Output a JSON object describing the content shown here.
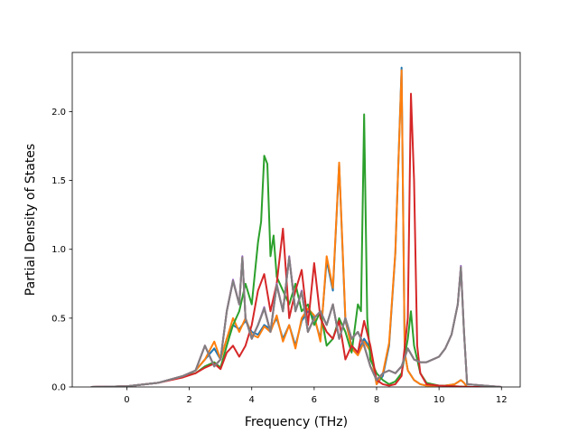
{
  "chart_data": {
    "type": "line",
    "title": "",
    "xlabel": "Frequency (THz)",
    "ylabel": "Partial Density of States",
    "xlim": [
      -1.75,
      12.6
    ],
    "ylim": [
      0,
      2.43
    ],
    "xticks": [
      0,
      2,
      4,
      6,
      8,
      10,
      12
    ],
    "yticks": [
      0.0,
      0.5,
      1.0,
      1.5,
      2.0
    ],
    "xtick_labels": [
      "0",
      "2",
      "4",
      "6",
      "8",
      "10",
      "12"
    ],
    "ytick_labels": [
      "0.0",
      "0.5",
      "1.0",
      "1.5",
      "2.0"
    ],
    "grid": false,
    "legend": "none",
    "series": [
      {
        "color": "#1f77b4",
        "x": [
          -1.15,
          0,
          1.0,
          1.8,
          2.2,
          2.5,
          2.8,
          3.0,
          3.2,
          3.4,
          3.6,
          3.8,
          4.0,
          4.2,
          4.4,
          4.6,
          4.8,
          5.0,
          5.2,
          5.4,
          5.6,
          5.8,
          6.0,
          6.2,
          6.4,
          6.6,
          6.8,
          7.0,
          7.2,
          7.4,
          7.6,
          7.8,
          8.0,
          8.2,
          8.4,
          8.6,
          8.8,
          8.9,
          9.0,
          9.2,
          9.4,
          9.6,
          9.8,
          10.0,
          10.2,
          10.5,
          10.7,
          10.8,
          10.9,
          12.0
        ],
        "y": [
          0,
          0.005,
          0.03,
          0.08,
          0.12,
          0.2,
          0.28,
          0.2,
          0.35,
          0.45,
          0.42,
          0.48,
          0.4,
          0.38,
          0.45,
          0.42,
          0.5,
          0.35,
          0.45,
          0.3,
          0.48,
          0.55,
          0.5,
          0.35,
          0.92,
          0.7,
          1.62,
          0.48,
          0.3,
          0.25,
          0.35,
          0.28,
          0.02,
          0.08,
          0.3,
          0.97,
          2.32,
          0.25,
          0.12,
          0.05,
          0.02,
          0.01,
          0.01,
          0.01,
          0.01,
          0.02,
          0.05,
          0.03,
          0.0,
          0.0
        ]
      },
      {
        "color": "#ff7f0e",
        "x": [
          -1.15,
          0,
          1.0,
          1.8,
          2.2,
          2.5,
          2.8,
          3.0,
          3.2,
          3.4,
          3.6,
          3.8,
          4.0,
          4.2,
          4.4,
          4.6,
          4.8,
          5.0,
          5.2,
          5.4,
          5.6,
          5.8,
          6.0,
          6.2,
          6.4,
          6.6,
          6.8,
          7.0,
          7.2,
          7.4,
          7.6,
          7.8,
          8.0,
          8.2,
          8.4,
          8.6,
          8.8,
          8.9,
          9.0,
          9.2,
          9.4,
          9.6,
          9.8,
          10.0,
          10.2,
          10.5,
          10.7,
          10.8,
          10.9,
          12.0
        ],
        "y": [
          0,
          0.005,
          0.03,
          0.08,
          0.12,
          0.2,
          0.33,
          0.2,
          0.35,
          0.5,
          0.4,
          0.5,
          0.38,
          0.36,
          0.44,
          0.4,
          0.52,
          0.33,
          0.45,
          0.28,
          0.5,
          0.57,
          0.52,
          0.33,
          0.95,
          0.72,
          1.63,
          0.5,
          0.28,
          0.23,
          0.33,
          0.26,
          0.02,
          0.1,
          0.32,
          0.98,
          2.3,
          0.25,
          0.12,
          0.05,
          0.02,
          0.01,
          0.01,
          0.01,
          0.01,
          0.02,
          0.05,
          0.03,
          0.0,
          0.0
        ]
      },
      {
        "color": "#2ca02c",
        "x": [
          -1.15,
          0,
          1.0,
          1.8,
          2.2,
          2.5,
          2.8,
          3.0,
          3.2,
          3.4,
          3.6,
          3.8,
          4.0,
          4.2,
          4.3,
          4.4,
          4.5,
          4.6,
          4.7,
          4.8,
          5.0,
          5.2,
          5.4,
          5.6,
          5.8,
          6.0,
          6.2,
          6.4,
          6.6,
          6.8,
          7.0,
          7.2,
          7.4,
          7.5,
          7.6,
          7.7,
          7.8,
          8.0,
          8.2,
          8.4,
          8.6,
          8.8,
          9.0,
          9.1,
          9.2,
          9.4,
          9.6,
          10.0,
          11.0,
          12.0
        ],
        "y": [
          0,
          0.005,
          0.03,
          0.08,
          0.1,
          0.15,
          0.18,
          0.14,
          0.3,
          0.45,
          0.55,
          0.75,
          0.6,
          1.05,
          1.2,
          1.68,
          1.62,
          0.95,
          1.1,
          0.8,
          0.7,
          0.6,
          0.75,
          0.55,
          0.6,
          0.45,
          0.55,
          0.3,
          0.35,
          0.5,
          0.4,
          0.25,
          0.6,
          0.55,
          1.98,
          0.5,
          0.2,
          0.1,
          0.05,
          0.02,
          0.04,
          0.1,
          0.35,
          0.55,
          0.3,
          0.1,
          0.03,
          0.01,
          0.0,
          0.0
        ]
      },
      {
        "color": "#d62728",
        "x": [
          -1.15,
          0,
          1.0,
          1.8,
          2.2,
          2.5,
          2.8,
          3.0,
          3.2,
          3.4,
          3.6,
          3.8,
          4.0,
          4.2,
          4.4,
          4.6,
          4.8,
          5.0,
          5.2,
          5.4,
          5.6,
          5.8,
          6.0,
          6.2,
          6.4,
          6.6,
          6.8,
          7.0,
          7.2,
          7.4,
          7.6,
          7.8,
          8.0,
          8.2,
          8.4,
          8.6,
          8.8,
          9.0,
          9.1,
          9.2,
          9.3,
          9.4,
          9.6,
          10.0,
          11.0,
          12.0
        ],
        "y": [
          0,
          0.005,
          0.03,
          0.07,
          0.1,
          0.14,
          0.17,
          0.13,
          0.25,
          0.3,
          0.22,
          0.3,
          0.45,
          0.7,
          0.82,
          0.55,
          0.75,
          1.15,
          0.5,
          0.7,
          0.85,
          0.45,
          0.9,
          0.5,
          0.4,
          0.35,
          0.48,
          0.2,
          0.3,
          0.25,
          0.48,
          0.3,
          0.05,
          0.02,
          0.01,
          0.02,
          0.08,
          0.5,
          2.13,
          1.5,
          0.3,
          0.1,
          0.02,
          0.01,
          0.0,
          0.0
        ]
      },
      {
        "color": "#9467bd",
        "x": [
          -1.15,
          0,
          1.0,
          1.8,
          2.2,
          2.5,
          2.8,
          3.0,
          3.2,
          3.4,
          3.6,
          3.7,
          3.8,
          4.0,
          4.2,
          4.4,
          4.6,
          4.8,
          5.0,
          5.2,
          5.4,
          5.6,
          5.8,
          6.0,
          6.2,
          6.4,
          6.6,
          6.8,
          7.0,
          7.2,
          7.4,
          7.6,
          7.8,
          8.0,
          8.2,
          8.4,
          8.6,
          8.8,
          9.0,
          9.2,
          9.4,
          9.6,
          9.8,
          10.0,
          10.2,
          10.4,
          10.6,
          10.7,
          10.8,
          10.9,
          12.0
        ],
        "y": [
          0,
          0.005,
          0.03,
          0.08,
          0.12,
          0.3,
          0.15,
          0.2,
          0.55,
          0.78,
          0.6,
          0.95,
          0.5,
          0.35,
          0.45,
          0.58,
          0.4,
          0.75,
          0.55,
          0.95,
          0.55,
          0.7,
          0.4,
          0.5,
          0.55,
          0.45,
          0.6,
          0.35,
          0.5,
          0.35,
          0.4,
          0.3,
          0.15,
          0.05,
          0.1,
          0.12,
          0.1,
          0.15,
          0.28,
          0.2,
          0.18,
          0.18,
          0.2,
          0.22,
          0.28,
          0.38,
          0.6,
          0.88,
          0.4,
          0.02,
          0.0
        ]
      },
      {
        "color": "#8c564b",
        "x": [
          -1.15,
          0,
          1.0,
          1.8,
          2.2,
          2.5,
          2.8,
          3.0,
          3.2,
          3.4,
          3.6,
          3.7,
          3.8,
          4.0,
          4.2,
          4.4,
          4.6,
          4.8,
          5.0,
          5.2,
          5.4,
          5.6,
          5.8,
          6.0,
          6.2,
          6.4,
          6.6,
          6.8,
          7.0,
          7.2,
          7.4,
          7.6,
          7.8,
          8.0,
          8.2,
          8.4,
          8.6,
          8.8,
          9.0,
          9.2,
          9.4,
          9.6,
          9.8,
          10.0,
          10.2,
          10.4,
          10.6,
          10.7,
          10.8,
          10.9,
          12.0
        ],
        "y": [
          0,
          0.005,
          0.03,
          0.08,
          0.12,
          0.3,
          0.15,
          0.2,
          0.55,
          0.77,
          0.6,
          0.94,
          0.5,
          0.35,
          0.45,
          0.57,
          0.4,
          0.74,
          0.55,
          0.94,
          0.55,
          0.69,
          0.4,
          0.5,
          0.55,
          0.45,
          0.6,
          0.35,
          0.5,
          0.35,
          0.4,
          0.3,
          0.15,
          0.05,
          0.1,
          0.12,
          0.1,
          0.15,
          0.28,
          0.2,
          0.18,
          0.18,
          0.2,
          0.22,
          0.28,
          0.38,
          0.6,
          0.87,
          0.4,
          0.02,
          0.0
        ]
      },
      {
        "color": "#e377c2",
        "x": [
          -1.15,
          0,
          1.0,
          1.8,
          2.2,
          2.5,
          2.8,
          3.0,
          3.2,
          3.4,
          3.6,
          3.7,
          3.8,
          4.0,
          4.2,
          4.4,
          4.6,
          4.8,
          5.0,
          5.2,
          5.4,
          5.6,
          5.8,
          6.0,
          6.2,
          6.4,
          6.6,
          6.8,
          7.0,
          7.2,
          7.4,
          7.6,
          7.8,
          8.0,
          8.2,
          8.4,
          8.6,
          8.8,
          9.0,
          9.2,
          9.4,
          9.6,
          9.8,
          10.0,
          10.2,
          10.4,
          10.6,
          10.7,
          10.8,
          10.9,
          12.0
        ],
        "y": [
          0,
          0.005,
          0.03,
          0.08,
          0.12,
          0.3,
          0.15,
          0.2,
          0.55,
          0.77,
          0.6,
          0.94,
          0.5,
          0.35,
          0.45,
          0.57,
          0.4,
          0.74,
          0.55,
          0.94,
          0.55,
          0.69,
          0.4,
          0.5,
          0.55,
          0.45,
          0.6,
          0.35,
          0.5,
          0.35,
          0.4,
          0.3,
          0.15,
          0.05,
          0.1,
          0.12,
          0.1,
          0.15,
          0.28,
          0.2,
          0.18,
          0.18,
          0.2,
          0.22,
          0.28,
          0.38,
          0.6,
          0.87,
          0.4,
          0.02,
          0.0
        ]
      },
      {
        "color": "#7f7f7f",
        "x": [
          -1.15,
          0,
          1.0,
          1.8,
          2.2,
          2.5,
          2.8,
          3.0,
          3.2,
          3.4,
          3.6,
          3.7,
          3.8,
          4.0,
          4.2,
          4.4,
          4.6,
          4.8,
          5.0,
          5.2,
          5.4,
          5.6,
          5.8,
          6.0,
          6.2,
          6.4,
          6.6,
          6.8,
          7.0,
          7.2,
          7.4,
          7.6,
          7.8,
          8.0,
          8.2,
          8.4,
          8.6,
          8.8,
          9.0,
          9.2,
          9.4,
          9.6,
          9.8,
          10.0,
          10.2,
          10.4,
          10.6,
          10.7,
          10.8,
          10.9,
          12.0
        ],
        "y": [
          0,
          0.005,
          0.03,
          0.08,
          0.12,
          0.3,
          0.15,
          0.2,
          0.55,
          0.77,
          0.6,
          0.94,
          0.5,
          0.35,
          0.45,
          0.57,
          0.4,
          0.74,
          0.55,
          0.94,
          0.55,
          0.69,
          0.4,
          0.5,
          0.55,
          0.45,
          0.6,
          0.35,
          0.5,
          0.35,
          0.4,
          0.3,
          0.15,
          0.05,
          0.1,
          0.12,
          0.1,
          0.15,
          0.28,
          0.2,
          0.18,
          0.18,
          0.2,
          0.22,
          0.28,
          0.38,
          0.6,
          0.87,
          0.4,
          0.02,
          0.0
        ]
      }
    ]
  }
}
